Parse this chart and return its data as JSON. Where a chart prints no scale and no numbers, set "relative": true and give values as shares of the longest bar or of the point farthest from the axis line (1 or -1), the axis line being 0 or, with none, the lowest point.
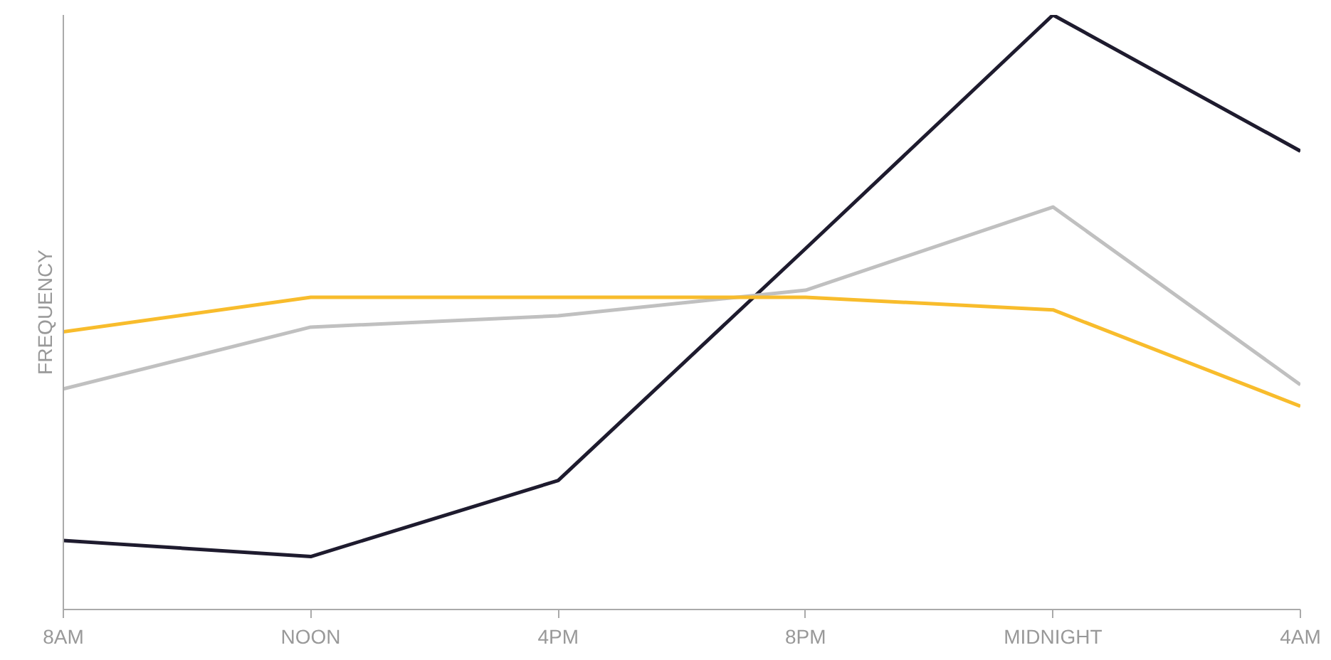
{
  "chart_data": {
    "type": "line",
    "ylabel": "FREQUENCY",
    "relative": true,
    "categories": [
      "8AM",
      "NOON",
      "4PM",
      "8PM",
      "MIDNIGHT",
      "4AM"
    ],
    "grid": false,
    "marker": "none",
    "line_style": "solid",
    "series": [
      {
        "color": "#1e1b2e",
        "values": [
          0.116,
          0.089,
          0.217,
          0.607,
          1,
          0.771
        ]
      },
      {
        "color": "#c0c0c0",
        "values": [
          0.371,
          0.475,
          0.494,
          0.537,
          0.677,
          0.378
        ]
      },
      {
        "color": "#f8bc2c",
        "values": [
          0.467,
          0.525,
          0.525,
          0.525,
          0.504,
          0.342
        ]
      }
    ]
  }
}
